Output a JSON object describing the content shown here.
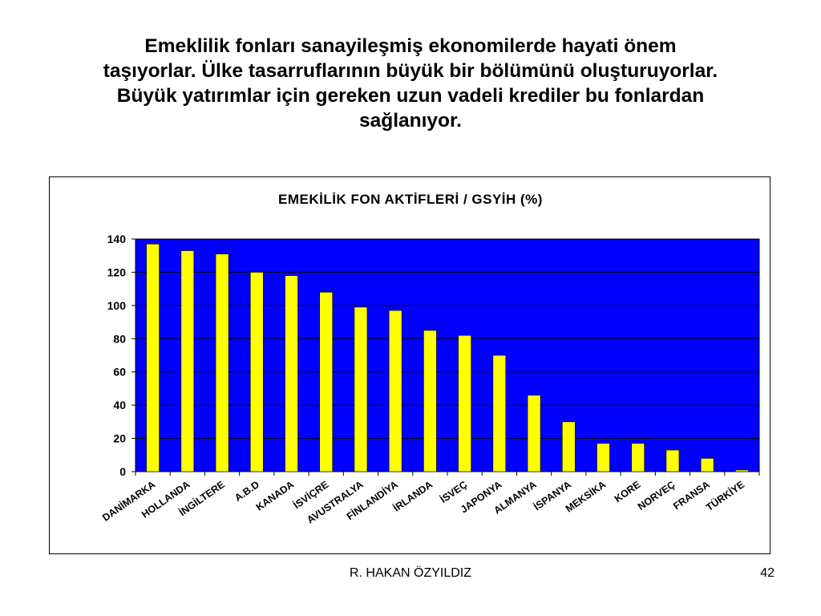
{
  "slide": {
    "title_lines": [
      "Emeklilik fonları sanayileşmiş ekonomilerde hayati önem",
      "taşıyorlar. Ülke tasarruflarının büyük bir bölümünü oluşturuyorlar.",
      "Büyük yatırımlar için gereken uzun vadeli krediler bu fonlardan",
      "sağlanıyor."
    ],
    "author": "R. HAKAN ÖZYILDIZ",
    "page_number": "42"
  },
  "chart_data": {
    "type": "bar",
    "title": "EMEKİLİK FON AKTİFLERİ / GSYİH (%)",
    "xlabel": "",
    "ylabel": "",
    "categories": [
      "DANİMARKA",
      "HOLLANDA",
      "İNGİLTERE",
      "A.B.D",
      "KANADA",
      "İSVİÇRE",
      "AVUSTRALYA",
      "FİNLANDİYA",
      "İRLANDA",
      "İSVEÇ",
      "JAPONYA",
      "ALMANYA",
      "İSPANYA",
      "MEKSİKA",
      "KORE",
      "NORVEÇ",
      "FRANSA",
      "TÜRKİYE"
    ],
    "values": [
      137,
      133,
      131,
      120,
      118,
      108,
      99,
      97,
      85,
      82,
      70,
      46,
      30,
      17,
      17,
      13,
      8,
      1
    ],
    "ylim": [
      0,
      140
    ],
    "yticks": [
      0,
      20,
      40,
      60,
      80,
      100,
      120,
      140
    ],
    "grid": true,
    "legend": "none",
    "colors": {
      "plot_background": "#0000ff",
      "bar_fill": "#ffff00",
      "bar_stroke": "#000000",
      "gridline": "#000000"
    }
  }
}
